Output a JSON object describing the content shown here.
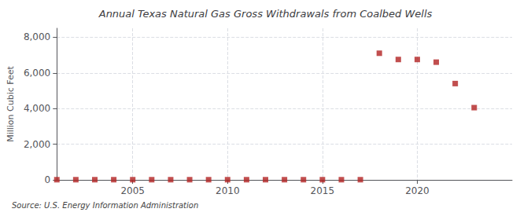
{
  "chart_data": {
    "type": "scatter",
    "title": "Annual Texas Natural Gas Gross Withdrawals from Coalbed Wells",
    "ylabel": "Million Cubic Feet",
    "annotation": "Source: U.S. Energy Information Administration",
    "x": [
      2001,
      2002,
      2003,
      2004,
      2005,
      2006,
      2007,
      2008,
      2009,
      2010,
      2011,
      2012,
      2013,
      2014,
      2015,
      2016,
      2017,
      2018,
      2019,
      2020,
      2021,
      2022,
      2023
    ],
    "values": [
      10,
      10,
      10,
      10,
      10,
      10,
      10,
      10,
      10,
      10,
      10,
      10,
      10,
      10,
      10,
      10,
      10,
      7100,
      6750,
      6750,
      6600,
      5400,
      4050
    ],
    "color": "#b22222",
    "marker": "square",
    "xlim": [
      2001,
      2025
    ],
    "xticks": [
      2005,
      2010,
      2015,
      2020
    ],
    "ylim": [
      0,
      8500
    ],
    "yticks": [
      0,
      {
        "value": 2000,
        "label": "2,000"
      },
      {
        "value": 4000,
        "label": "4,000"
      },
      {
        "value": 6000,
        "label": "6,000"
      },
      {
        "value": 8000,
        "label": "8,000"
      }
    ],
    "grid": true
  }
}
